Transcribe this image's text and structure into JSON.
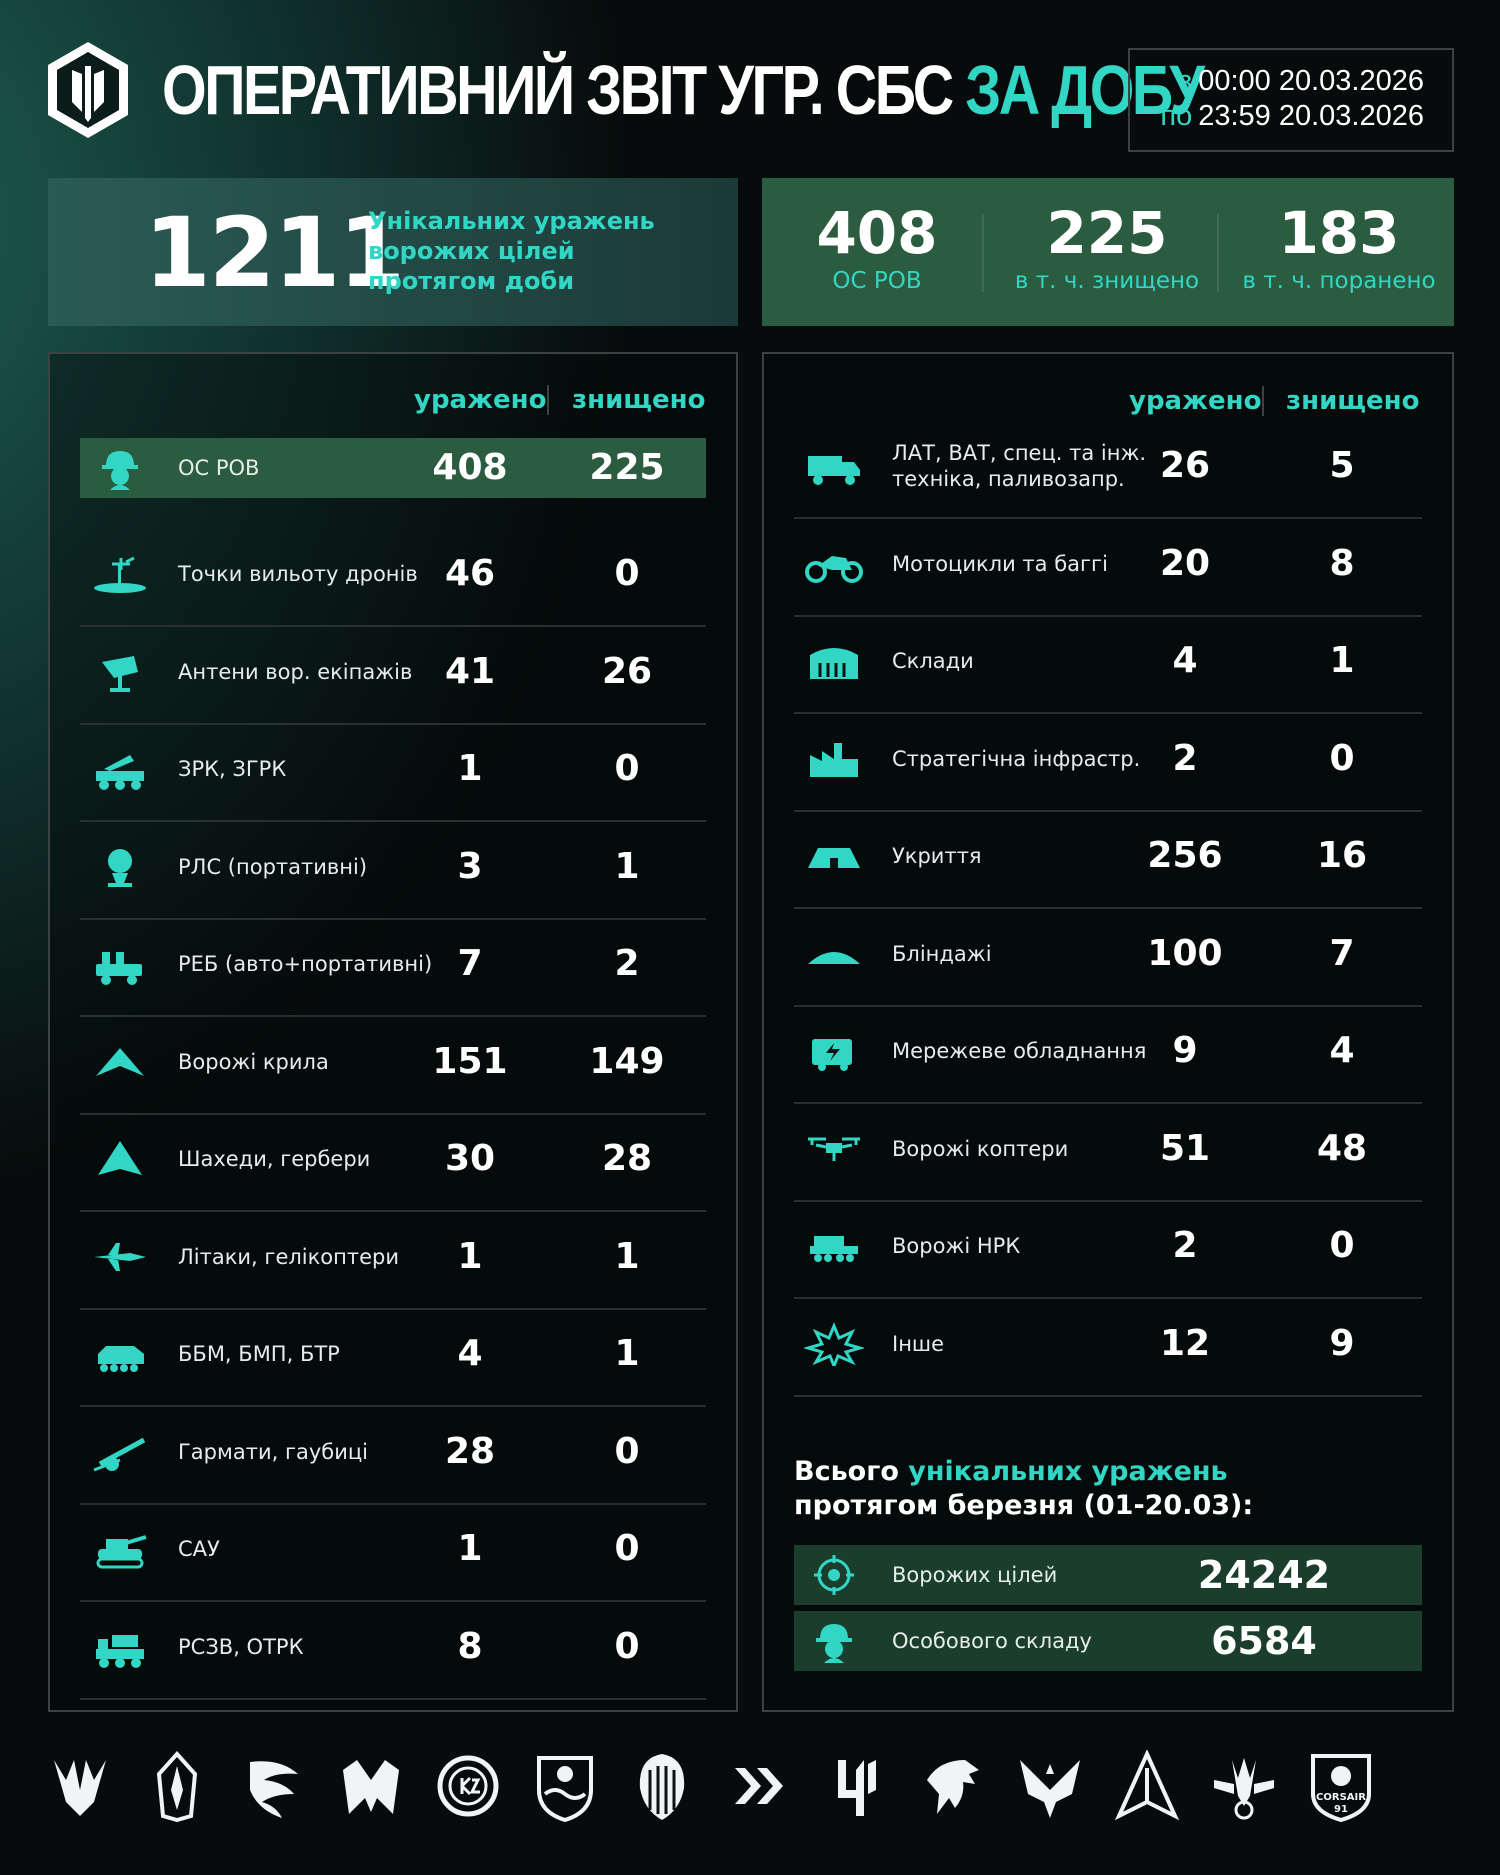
{
  "header": {
    "title_main": "ОПЕРАТИВНИЙ ЗВІТ УГР. СБС",
    "title_accent": "ЗА ДОБУ",
    "date_from_prefix": "з",
    "date_from": "00:00 20.03.2026",
    "date_to_prefix": "по",
    "date_to": "23:59 20.03.2026"
  },
  "summary": {
    "total": "1211",
    "total_desc_1": "Унікальних уражень",
    "total_desc_2": "ворожих цілей",
    "total_desc_3": "протягом доби",
    "personnel": {
      "value": "408",
      "label": "ОС РОВ"
    },
    "destroyed": {
      "value": "225",
      "label": "в т. ч. знищено"
    },
    "wounded": {
      "value": "183",
      "label": "в т. ч. поранено"
    }
  },
  "columns": {
    "hit": "уражено",
    "destroyed": "знищено"
  },
  "left_rows": [
    {
      "icon": "soldier-icon",
      "label": "ОС РОВ",
      "hit": "408",
      "destroyed": "225"
    },
    {
      "icon": "drone-launch-icon",
      "label": "Точки вильоту дронів",
      "hit": "46",
      "destroyed": "0"
    },
    {
      "icon": "antenna-icon",
      "label": "Антени вор. екіпажів",
      "hit": "41",
      "destroyed": "26"
    },
    {
      "icon": "sam-launcher-icon",
      "label": "ЗРК, ЗГРК",
      "hit": "1",
      "destroyed": "0"
    },
    {
      "icon": "radar-icon",
      "label": "РЛС (портативні)",
      "hit": "3",
      "destroyed": "1"
    },
    {
      "icon": "ew-vehicle-icon",
      "label": "РЕБ (авто+портативні)",
      "hit": "7",
      "destroyed": "2"
    },
    {
      "icon": "wing-drone-icon",
      "label": "Ворожі крила",
      "hit": "151",
      "destroyed": "149"
    },
    {
      "icon": "shahed-icon",
      "label": "Шахеди, гербери",
      "hit": "30",
      "destroyed": "28"
    },
    {
      "icon": "jet-icon",
      "label": "Літаки, гелікоптери",
      "hit": "1",
      "destroyed": "1"
    },
    {
      "icon": "apc-icon",
      "label": "ББМ, БМП, БТР",
      "hit": "4",
      "destroyed": "1"
    },
    {
      "icon": "howitzer-icon",
      "label": "Гармати, гаубиці",
      "hit": "28",
      "destroyed": "0"
    },
    {
      "icon": "spg-icon",
      "label": "САУ",
      "hit": "1",
      "destroyed": "0"
    },
    {
      "icon": "mlrs-icon",
      "label": "РСЗВ, ОТРК",
      "hit": "8",
      "destroyed": "0"
    }
  ],
  "right_rows": [
    {
      "icon": "truck-icon",
      "label": "ЛАТ, ВАТ, спец. та інж.",
      "label2": "техніка, паливозапр.",
      "hit": "26",
      "destroyed": "5"
    },
    {
      "icon": "motorcycle-icon",
      "label": "Мотоцикли та баггі",
      "hit": "20",
      "destroyed": "8"
    },
    {
      "icon": "warehouse-icon",
      "label": "Склади",
      "hit": "4",
      "destroyed": "1"
    },
    {
      "icon": "factory-icon",
      "label": "Стратегічна інфрастр.",
      "hit": "2",
      "destroyed": "0"
    },
    {
      "icon": "shelter-icon",
      "label": "Укриття",
      "hit": "256",
      "destroyed": "16"
    },
    {
      "icon": "dugout-icon",
      "label": "Бліндажі",
      "hit": "100",
      "destroyed": "7"
    },
    {
      "icon": "network-equipment-icon",
      "label": "Мережеве обладнання",
      "hit": "9",
      "destroyed": "4"
    },
    {
      "icon": "quadcopter-icon",
      "label": "Ворожі коптери",
      "hit": "51",
      "destroyed": "48"
    },
    {
      "icon": "ugv-icon",
      "label": "Ворожі НРК",
      "hit": "2",
      "destroyed": "0"
    },
    {
      "icon": "explosion-icon",
      "label": "Інше",
      "hit": "12",
      "destroyed": "9"
    }
  ],
  "totals": {
    "title_1": "Всього",
    "title_accent": "унікальних уражень",
    "title_2": "протягом березня (01-20.03):",
    "targets": {
      "icon": "target-icon",
      "label": "Ворожих цілей",
      "value": "24242"
    },
    "personnel": {
      "icon": "soldier-icon",
      "label": "Особового складу",
      "value": "6584"
    }
  },
  "emblems": [
    "trident-emblem",
    "shield-blade-emblem",
    "eagle-wing-emblem",
    "bird-trident-emblem",
    "k2-round-emblem",
    "crest-emblem",
    "skull-emblem",
    "chevron-emblem",
    "number-emblem",
    "griffin-emblem",
    "falcon-emblem",
    "arrow-emblem",
    "winged-trident-emblem",
    "corsair-emblem"
  ],
  "corsair_text": "CORSAIR",
  "corsair_num": "91",
  "colors": {
    "accent": "#32d6c4",
    "highlight": "#2c5c40",
    "panel_border": "#3a4342"
  }
}
